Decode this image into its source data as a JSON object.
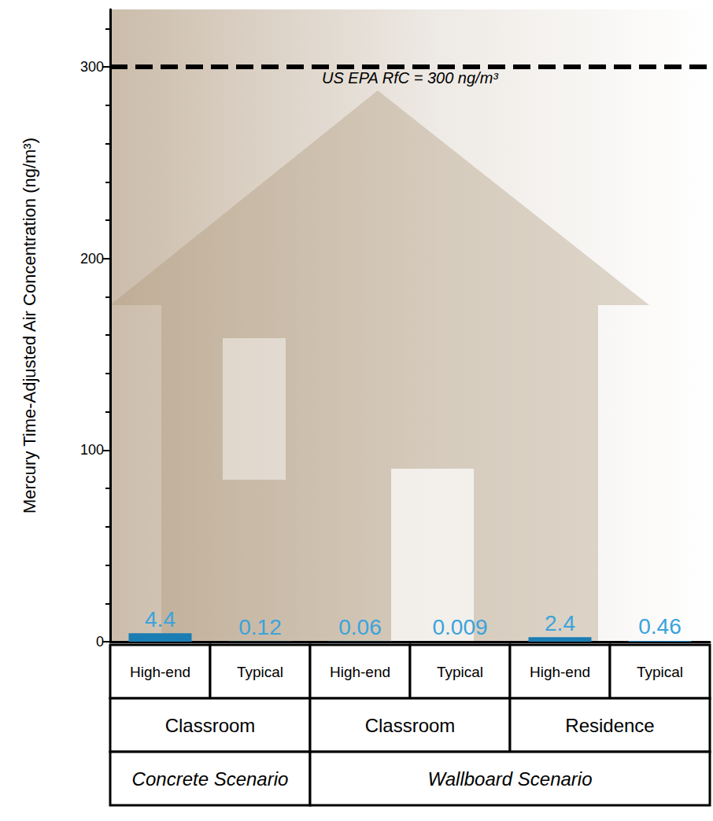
{
  "chart_data": {
    "type": "bar",
    "y_label": "Mercury Time-Adjusted Air Concentration (ng/m³)",
    "categories": [
      "High-end",
      "Typical",
      "High-end",
      "Typical",
      "High-end",
      "Typical"
    ],
    "groups": [
      {
        "label": "Classroom",
        "span": 2
      },
      {
        "label": "Classroom",
        "span": 2
      },
      {
        "label": "Residence",
        "span": 2
      }
    ],
    "scenarios": [
      {
        "label": "Concrete Scenario",
        "span": 2
      },
      {
        "label": "Wallboard Scenario",
        "span": 4
      }
    ],
    "values": [
      4.4,
      0.12,
      0.06,
      0.009,
      2.4,
      0.46
    ],
    "color": "#1a7db3",
    "data_labels": true,
    "ylim": [
      0,
      330
    ],
    "yticks": [
      0,
      100,
      200,
      300
    ],
    "reference_line": {
      "value": 300,
      "label": "US EPA RfC = 300 ng/m³"
    },
    "grid": false
  }
}
